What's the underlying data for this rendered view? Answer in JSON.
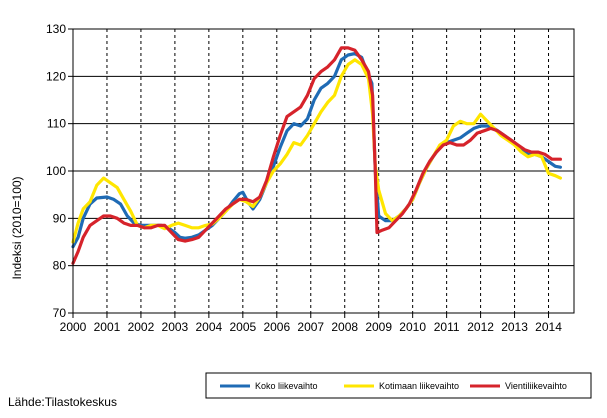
{
  "chart_data": {
    "type": "line",
    "title": "",
    "xlabel": "",
    "ylabel": "Indeksi (2010=100)",
    "ylim": [
      70,
      130
    ],
    "xlim": [
      2000,
      2014.75
    ],
    "x_ticks": [
      {
        "value": 2000,
        "label": "2000"
      },
      {
        "value": 2001,
        "label": "2001"
      },
      {
        "value": 2002,
        "label": "2002"
      },
      {
        "value": 2003,
        "label": "2003"
      },
      {
        "value": 2004,
        "label": "2004"
      },
      {
        "value": 2005,
        "label": "2005"
      },
      {
        "value": 2006,
        "label": "2006"
      },
      {
        "value": 2007,
        "label": "2007"
      },
      {
        "value": 2008,
        "label": "2008"
      },
      {
        "value": 2009,
        "label": "2009"
      },
      {
        "value": 2010,
        "label": "2010"
      },
      {
        "value": 2011,
        "label": "2011"
      },
      {
        "value": 2012,
        "label": "2012"
      },
      {
        "value": 2013,
        "label": "2013"
      },
      {
        "value": 2014,
        "label": "2014"
      }
    ],
    "y_ticks": [
      {
        "value": 70,
        "label": "70"
      },
      {
        "value": 80,
        "label": "80"
      },
      {
        "value": 90,
        "label": "90"
      },
      {
        "value": 100,
        "label": "100"
      },
      {
        "value": 110,
        "label": "110"
      },
      {
        "value": 120,
        "label": "120"
      },
      {
        "value": 130,
        "label": "130"
      }
    ],
    "grid": {
      "horizontal": "solid",
      "vertical": "dashed"
    },
    "legend_position": "bottom-right",
    "series": [
      {
        "name": "Koko liikevaihto",
        "color": "#1f6bb5",
        "points": [
          [
            2000.0,
            84
          ],
          [
            2000.15,
            86
          ],
          [
            2000.3,
            90
          ],
          [
            2000.5,
            93
          ],
          [
            2000.7,
            94.3
          ],
          [
            2001.0,
            94.5
          ],
          [
            2001.2,
            94
          ],
          [
            2001.4,
            93
          ],
          [
            2001.6,
            90.5
          ],
          [
            2001.8,
            89
          ],
          [
            2002.0,
            88.5
          ],
          [
            2002.2,
            88.5
          ],
          [
            2002.4,
            88.5
          ],
          [
            2002.6,
            88.5
          ],
          [
            2002.8,
            88
          ],
          [
            2003.0,
            87
          ],
          [
            2003.15,
            86
          ],
          [
            2003.3,
            85.8
          ],
          [
            2003.5,
            86
          ],
          [
            2003.7,
            86.5
          ],
          [
            2003.9,
            87.5
          ],
          [
            2004.1,
            88.5
          ],
          [
            2004.3,
            90
          ],
          [
            2004.5,
            91.5
          ],
          [
            2004.7,
            93.5
          ],
          [
            2004.9,
            95.2
          ],
          [
            2005.0,
            95.5
          ],
          [
            2005.15,
            93.5
          ],
          [
            2005.3,
            92
          ],
          [
            2005.5,
            94
          ],
          [
            2005.7,
            97.5
          ],
          [
            2005.9,
            101
          ],
          [
            2006.1,
            105
          ],
          [
            2006.3,
            108.5
          ],
          [
            2006.5,
            110
          ],
          [
            2006.7,
            109.5
          ],
          [
            2006.9,
            111
          ],
          [
            2007.1,
            115
          ],
          [
            2007.3,
            117.5
          ],
          [
            2007.5,
            118.5
          ],
          [
            2007.7,
            120
          ],
          [
            2007.9,
            123.5
          ],
          [
            2008.1,
            124.5
          ],
          [
            2008.3,
            124.8
          ],
          [
            2008.5,
            124
          ],
          [
            2008.65,
            121
          ],
          [
            2008.8,
            118.5
          ],
          [
            2008.9,
            100
          ],
          [
            2009.0,
            90.5
          ],
          [
            2009.2,
            89.5
          ],
          [
            2009.4,
            89.5
          ],
          [
            2009.6,
            90.5
          ],
          [
            2009.8,
            92
          ],
          [
            2010.0,
            94
          ],
          [
            2010.2,
            97.5
          ],
          [
            2010.4,
            100.5
          ],
          [
            2010.6,
            103
          ],
          [
            2010.8,
            105
          ],
          [
            2011.0,
            106
          ],
          [
            2011.2,
            106.5
          ],
          [
            2011.4,
            107
          ],
          [
            2011.6,
            108
          ],
          [
            2011.8,
            109
          ],
          [
            2012.0,
            109.5
          ],
          [
            2012.2,
            109.5
          ],
          [
            2012.4,
            109
          ],
          [
            2012.6,
            108
          ],
          [
            2012.8,
            107
          ],
          [
            2013.0,
            106
          ],
          [
            2013.2,
            104.5
          ],
          [
            2013.4,
            103.5
          ],
          [
            2013.6,
            103.5
          ],
          [
            2013.8,
            103
          ],
          [
            2014.0,
            102
          ],
          [
            2014.2,
            101
          ],
          [
            2014.35,
            100.8
          ]
        ]
      },
      {
        "name": "Kotimaan liikevaihto",
        "color": "#ffe600",
        "points": [
          [
            2000.0,
            85
          ],
          [
            2000.15,
            89
          ],
          [
            2000.3,
            92
          ],
          [
            2000.5,
            93.5
          ],
          [
            2000.7,
            97
          ],
          [
            2000.9,
            98.5
          ],
          [
            2001.1,
            97.5
          ],
          [
            2001.3,
            96.5
          ],
          [
            2001.5,
            94
          ],
          [
            2001.7,
            91.5
          ],
          [
            2001.9,
            88.5
          ],
          [
            2002.1,
            88
          ],
          [
            2002.3,
            88.5
          ],
          [
            2002.5,
            88.5
          ],
          [
            2002.7,
            87.8
          ],
          [
            2002.9,
            88.5
          ],
          [
            2003.1,
            89
          ],
          [
            2003.3,
            88.5
          ],
          [
            2003.5,
            88
          ],
          [
            2003.7,
            88
          ],
          [
            2003.9,
            88.5
          ],
          [
            2004.1,
            88.8
          ],
          [
            2004.3,
            90
          ],
          [
            2004.5,
            91.5
          ],
          [
            2004.7,
            93
          ],
          [
            2004.9,
            94
          ],
          [
            2005.1,
            93.5
          ],
          [
            2005.3,
            92.5
          ],
          [
            2005.5,
            94.5
          ],
          [
            2005.7,
            97.5
          ],
          [
            2005.9,
            100
          ],
          [
            2006.1,
            101.5
          ],
          [
            2006.3,
            103.5
          ],
          [
            2006.5,
            106
          ],
          [
            2006.7,
            105.5
          ],
          [
            2006.9,
            107.5
          ],
          [
            2007.1,
            110
          ],
          [
            2007.3,
            112.5
          ],
          [
            2007.5,
            114.5
          ],
          [
            2007.7,
            116
          ],
          [
            2007.9,
            120
          ],
          [
            2008.1,
            122.5
          ],
          [
            2008.3,
            123.5
          ],
          [
            2008.5,
            122.5
          ],
          [
            2008.7,
            119.5
          ],
          [
            2008.82,
            112
          ],
          [
            2008.9,
            101
          ],
          [
            2009.0,
            96
          ],
          [
            2009.2,
            91
          ],
          [
            2009.4,
            89.5
          ],
          [
            2009.6,
            90.5
          ],
          [
            2009.8,
            92
          ],
          [
            2010.0,
            94
          ],
          [
            2010.2,
            97.5
          ],
          [
            2010.4,
            100.5
          ],
          [
            2010.6,
            103
          ],
          [
            2010.8,
            105.5
          ],
          [
            2011.0,
            106.5
          ],
          [
            2011.2,
            109.5
          ],
          [
            2011.4,
            110.5
          ],
          [
            2011.6,
            110
          ],
          [
            2011.8,
            110
          ],
          [
            2012.0,
            112
          ],
          [
            2012.2,
            110.5
          ],
          [
            2012.4,
            109
          ],
          [
            2012.6,
            107.5
          ],
          [
            2012.8,
            106.5
          ],
          [
            2013.0,
            105.5
          ],
          [
            2013.2,
            104
          ],
          [
            2013.4,
            103
          ],
          [
            2013.6,
            103.5
          ],
          [
            2013.8,
            103
          ],
          [
            2014.0,
            99.5
          ],
          [
            2014.2,
            99
          ],
          [
            2014.35,
            98.5
          ]
        ]
      },
      {
        "name": "Vientiliikevaihto",
        "color": "#d6232b",
        "points": [
          [
            2000.0,
            80.5
          ],
          [
            2000.15,
            83
          ],
          [
            2000.3,
            86
          ],
          [
            2000.5,
            88.5
          ],
          [
            2000.7,
            89.5
          ],
          [
            2000.9,
            90.5
          ],
          [
            2001.1,
            90.5
          ],
          [
            2001.3,
            90
          ],
          [
            2001.5,
            89
          ],
          [
            2001.7,
            88.5
          ],
          [
            2001.9,
            88.5
          ],
          [
            2002.1,
            88
          ],
          [
            2002.3,
            88
          ],
          [
            2002.5,
            88.5
          ],
          [
            2002.7,
            88.5
          ],
          [
            2002.9,
            87
          ],
          [
            2003.1,
            85.5
          ],
          [
            2003.3,
            85.2
          ],
          [
            2003.5,
            85.5
          ],
          [
            2003.7,
            86
          ],
          [
            2003.9,
            87.5
          ],
          [
            2004.1,
            89
          ],
          [
            2004.3,
            90.5
          ],
          [
            2004.5,
            92
          ],
          [
            2004.7,
            93
          ],
          [
            2004.9,
            94
          ],
          [
            2005.1,
            94
          ],
          [
            2005.3,
            93.5
          ],
          [
            2005.5,
            94.5
          ],
          [
            2005.7,
            98
          ],
          [
            2005.9,
            103
          ],
          [
            2006.1,
            107.5
          ],
          [
            2006.3,
            111.5
          ],
          [
            2006.5,
            112.5
          ],
          [
            2006.7,
            113.5
          ],
          [
            2006.9,
            116
          ],
          [
            2007.1,
            119.5
          ],
          [
            2007.3,
            121
          ],
          [
            2007.5,
            122
          ],
          [
            2007.7,
            123.5
          ],
          [
            2007.9,
            126
          ],
          [
            2008.1,
            126
          ],
          [
            2008.3,
            125.5
          ],
          [
            2008.5,
            123.5
          ],
          [
            2008.7,
            121
          ],
          [
            2008.82,
            116
          ],
          [
            2008.9,
            100
          ],
          [
            2008.95,
            87
          ],
          [
            2009.1,
            87.5
          ],
          [
            2009.3,
            88
          ],
          [
            2009.5,
            89.5
          ],
          [
            2009.7,
            91
          ],
          [
            2009.9,
            93
          ],
          [
            2010.1,
            96
          ],
          [
            2010.3,
            99.5
          ],
          [
            2010.5,
            102
          ],
          [
            2010.7,
            104
          ],
          [
            2010.9,
            105.5
          ],
          [
            2011.1,
            106
          ],
          [
            2011.3,
            105.5
          ],
          [
            2011.5,
            105.5
          ],
          [
            2011.7,
            106.5
          ],
          [
            2011.9,
            108
          ],
          [
            2012.1,
            108.5
          ],
          [
            2012.3,
            109
          ],
          [
            2012.5,
            108.5
          ],
          [
            2012.7,
            107.5
          ],
          [
            2012.9,
            106.5
          ],
          [
            2013.1,
            105.5
          ],
          [
            2013.3,
            104.5
          ],
          [
            2013.5,
            104
          ],
          [
            2013.7,
            104
          ],
          [
            2013.9,
            103.5
          ],
          [
            2014.1,
            102.5
          ],
          [
            2014.35,
            102.5
          ]
        ]
      }
    ]
  },
  "source_text": "Lähde:Tilastokeskus"
}
